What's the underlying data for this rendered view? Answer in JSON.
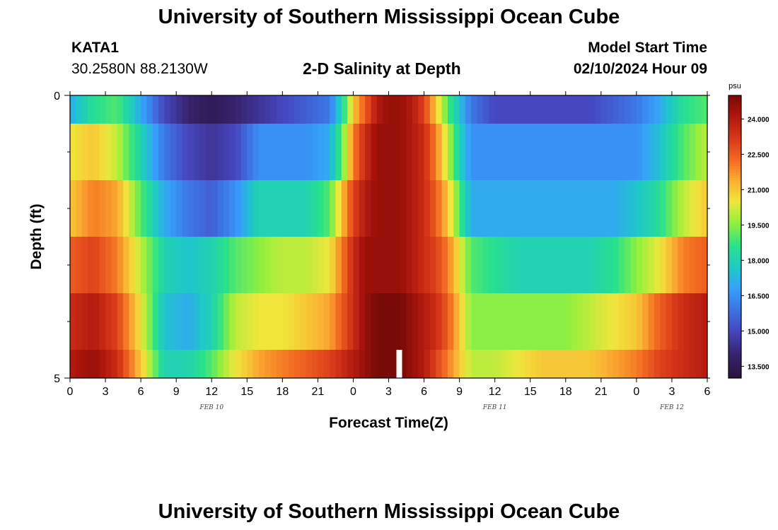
{
  "header": {
    "title": "University of Southern Mississippi Ocean Cube",
    "station": "KATA1",
    "coords": "30.2580N  88.2130W",
    "subtitle": "2-D Salinity at Depth",
    "model_start_label": "Model Start Time",
    "model_start_value": "02/10/2024 Hour 09"
  },
  "footer": {
    "title": "University of Southern Mississippi Ocean Cube"
  },
  "chart_data": {
    "type": "heatmap",
    "title": "2-D Salinity at Depth",
    "xlabel": "Forecast Time(Z)",
    "ylabel": "Depth (ft)",
    "x_tick_labels": [
      "0",
      "3",
      "6",
      "9",
      "12",
      "15",
      "18",
      "21",
      "0",
      "3",
      "6",
      "9",
      "12",
      "15",
      "18",
      "21",
      "0",
      "3",
      "6"
    ],
    "date_labels": [
      {
        "text": "FEB 10",
        "at_tick": 4
      },
      {
        "text": "FEB 11",
        "at_tick": 12
      },
      {
        "text": "FEB 12",
        "at_tick": 17
      }
    ],
    "y_tick_labels": [
      {
        "value": 0,
        "text": "0"
      },
      {
        "value": 5,
        "text": "5"
      }
    ],
    "ylim": [
      0,
      5
    ],
    "colorbar": {
      "unit": "psu",
      "min": 13.0,
      "max": 25.0,
      "ticks": [
        "24.000",
        "22.500",
        "21.000",
        "19.500",
        "18.000",
        "16.500",
        "15.000",
        "13.500"
      ],
      "tick_values": [
        24.0,
        22.5,
        21.0,
        19.5,
        18.0,
        16.5,
        15.0,
        13.5
      ]
    },
    "x_hours": [
      0,
      54
    ],
    "depth_rows": [
      0.25,
      1.0,
      2.0,
      3.0,
      4.0,
      4.75
    ],
    "series": [
      {
        "depth": 0.25,
        "hours": [
          0,
          2,
          4,
          6,
          8,
          10,
          12,
          14,
          16,
          18,
          20,
          22,
          23,
          24,
          25,
          26,
          27,
          28,
          29,
          30,
          31,
          32,
          33,
          34,
          36,
          38,
          40,
          42,
          44,
          46,
          48,
          50,
          52,
          54
        ],
        "salinity": [
          17,
          18.5,
          19,
          17,
          15,
          14,
          13.5,
          14,
          14.5,
          15,
          15.5,
          16,
          18,
          21,
          22.5,
          24,
          24.5,
          24.5,
          24,
          23,
          21,
          19,
          17.5,
          16,
          15,
          15,
          15,
          15,
          15,
          15.5,
          16,
          17,
          18.5,
          19
        ]
      },
      {
        "depth": 1.0,
        "hours": [
          0,
          2,
          4,
          6,
          8,
          10,
          12,
          14,
          16,
          18,
          20,
          22,
          23,
          24,
          25,
          26,
          27,
          28,
          29,
          30,
          31,
          32,
          33,
          34,
          36,
          38,
          40,
          42,
          44,
          46,
          48,
          50,
          52,
          54
        ],
        "salinity": [
          20.5,
          21,
          20,
          18,
          16,
          15,
          14.5,
          15,
          16.5,
          16.5,
          16.5,
          17,
          19,
          22,
          23.5,
          24.5,
          24.5,
          24.5,
          24,
          23.5,
          22,
          20,
          18,
          16.5,
          16.5,
          16.5,
          16.5,
          16.5,
          16.5,
          16.5,
          16.5,
          17.5,
          19,
          20
        ]
      },
      {
        "depth": 2.0,
        "hours": [
          0,
          2,
          4,
          6,
          8,
          10,
          12,
          14,
          16,
          18,
          20,
          22,
          23,
          24,
          25,
          26,
          27,
          28,
          29,
          30,
          31,
          32,
          33,
          34,
          36,
          38,
          40,
          42,
          44,
          46,
          48,
          50,
          52,
          54
        ],
        "salinity": [
          21,
          22,
          21.5,
          19,
          17,
          16,
          15.5,
          16.5,
          18,
          18,
          18,
          19,
          21,
          23,
          24,
          24.5,
          24.5,
          24.5,
          24,
          23.5,
          22.5,
          21,
          19,
          17,
          17,
          17,
          17,
          17,
          17,
          17,
          17.5,
          18.5,
          20,
          21
        ]
      },
      {
        "depth": 3.0,
        "hours": [
          0,
          2,
          4,
          6,
          8,
          10,
          12,
          14,
          16,
          18,
          20,
          22,
          23,
          24,
          25,
          26,
          27,
          28,
          29,
          30,
          31,
          32,
          33,
          34,
          36,
          38,
          40,
          42,
          44,
          46,
          48,
          50,
          52,
          54
        ],
        "salinity": [
          22.5,
          23,
          22,
          20,
          18,
          17.5,
          18,
          19,
          19.5,
          20,
          20,
          20.5,
          22,
          23.5,
          24.5,
          24.5,
          24.5,
          24.5,
          24,
          23.5,
          23,
          22,
          20.5,
          19,
          18.5,
          18,
          18,
          18,
          18,
          18.5,
          19.5,
          20.5,
          22,
          22.5
        ]
      },
      {
        "depth": 4.0,
        "hours": [
          0,
          2,
          4,
          6,
          8,
          10,
          12,
          14,
          16,
          18,
          20,
          22,
          23,
          24,
          25,
          26,
          27,
          28,
          29,
          30,
          31,
          32,
          33,
          34,
          36,
          38,
          40,
          42,
          44,
          46,
          48,
          50,
          52,
          54
        ],
        "salinity": [
          23.5,
          24,
          23,
          20.5,
          17.5,
          17,
          18,
          20,
          20.5,
          20.5,
          21,
          21.5,
          22.5,
          23.5,
          24.5,
          25,
          25,
          25,
          24.5,
          24,
          23.5,
          22.5,
          21,
          19.5,
          19.5,
          19.5,
          19.5,
          19.5,
          20,
          20.5,
          21,
          22.5,
          23.5,
          24
        ]
      },
      {
        "depth": 4.75,
        "hours": [
          0,
          2,
          4,
          6,
          8,
          10,
          12,
          14,
          16,
          18,
          20,
          22,
          23,
          24,
          25,
          26,
          27,
          28,
          29,
          30,
          31,
          32,
          33,
          34,
          36,
          38,
          40,
          42,
          44,
          46,
          48,
          50,
          52,
          54
        ],
        "salinity": [
          24,
          24.5,
          23.5,
          21,
          18,
          18,
          19,
          20.5,
          21.5,
          22,
          22.5,
          23,
          23.5,
          24,
          24.5,
          25,
          25,
          25,
          24.5,
          24,
          23,
          22,
          21,
          20,
          20,
          20.5,
          21,
          21,
          21,
          21.5,
          22,
          23,
          23.5,
          24
        ]
      }
    ]
  }
}
